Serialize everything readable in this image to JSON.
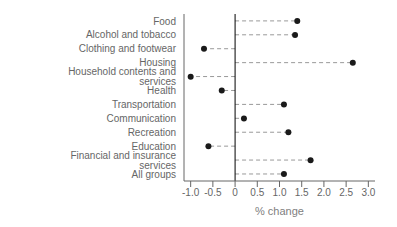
{
  "chart_data": {
    "type": "lollipop",
    "orientation": "horizontal",
    "categories": [
      "Food",
      "Alcohol and tobacco",
      "Clothing and footwear",
      "Housing",
      "Household contents and services",
      "Health",
      "Transportation",
      "Communication",
      "Recreation",
      "Education",
      "Financial and insurance services",
      "All groups"
    ],
    "values": [
      1.4,
      1.35,
      -0.7,
      2.65,
      -1.0,
      -0.3,
      1.1,
      0.2,
      1.2,
      -0.6,
      1.7,
      1.1
    ],
    "xlim": [
      -1.15,
      3.15
    ],
    "xticks": [
      {
        "value": -1.0,
        "label": "-1.0"
      },
      -0.5,
      0,
      0.5,
      {
        "value": 1.0,
        "label": "1.0"
      },
      1.5,
      {
        "value": 2.0,
        "label": "2.0"
      },
      2.5,
      {
        "value": 3.0,
        "label": "3.0"
      }
    ],
    "xlabel": "% change",
    "color": "#1a1a1a",
    "marker": "circle",
    "line_style": "dashed",
    "grid": false
  }
}
